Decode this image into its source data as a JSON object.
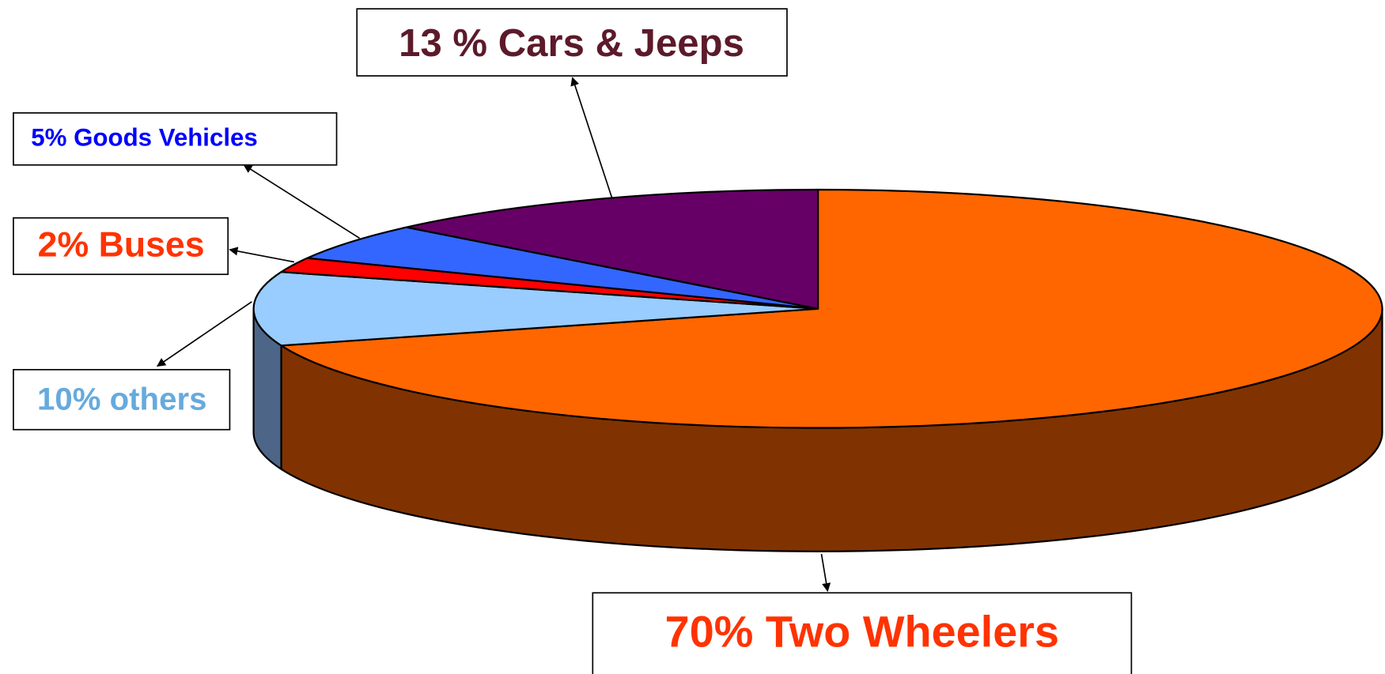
{
  "chart_data": {
    "type": "pie",
    "values": [
      70,
      10,
      2,
      5,
      13
    ],
    "value_labels": [
      "70% Two Wheelers",
      "10% others",
      "2% Buses",
      "5% Goods Vehicles",
      "13 % Cars & Jeeps"
    ],
    "colors": [
      "#ff6600",
      "#99ccff",
      "#ff0000",
      "#3366ff",
      "#660066"
    ],
    "side_colors": [
      "#803300",
      "#4d6688",
      "#990000",
      "#1f3d99",
      "#3d003d"
    ],
    "label_colors": [
      "#ff3300",
      "#66aadd",
      "#ff3300",
      "#0000ff",
      "#5c1a2a"
    ],
    "three_d": true
  }
}
